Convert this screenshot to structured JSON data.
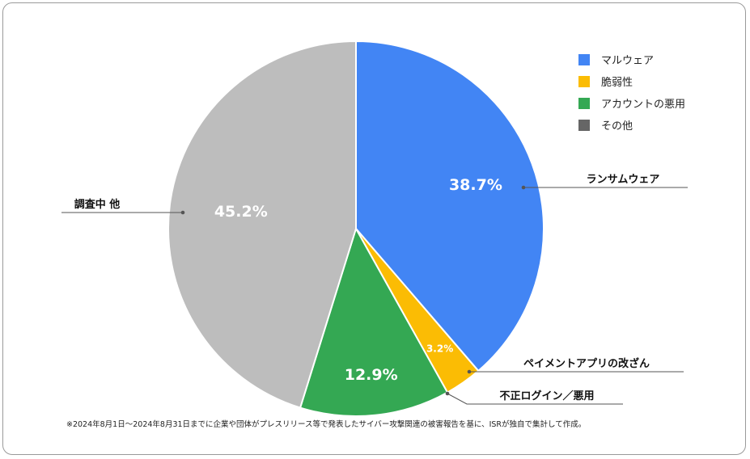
{
  "chart_data": {
    "type": "pie",
    "slices": [
      {
        "key": "ransomware",
        "label": "ランサムウェア",
        "value": 38.7,
        "value_label": "38.7%",
        "color": "#4285f4"
      },
      {
        "key": "payment-app",
        "label": "ペイメントアプリの改ざん",
        "value": 3.2,
        "value_label": "3.2%",
        "color": "#fbbc04"
      },
      {
        "key": "unauthorized-login",
        "label": "不正ログイン／悪用",
        "value": 12.9,
        "value_label": "12.9%",
        "color": "#34a853"
      },
      {
        "key": "under-investigation",
        "label": "調査中 他",
        "value": 45.2,
        "value_label": "45.2%",
        "color": "#bdbdbd"
      }
    ],
    "legend": {
      "position": "top-right",
      "items": [
        {
          "label": "マルウェア",
          "color": "#4285f4"
        },
        {
          "label": "脆弱性",
          "color": "#fbbc04"
        },
        {
          "label": "アカウントの悪用",
          "color": "#34a853"
        },
        {
          "label": "その他",
          "color": "#666666"
        }
      ]
    }
  },
  "footnote": "※2024年8月1日～2024年8月31日までに企業や団体がプレスリリース等で発表したサイバー攻撃関連の被害報告を基に、ISRが独自で集計して作成。"
}
